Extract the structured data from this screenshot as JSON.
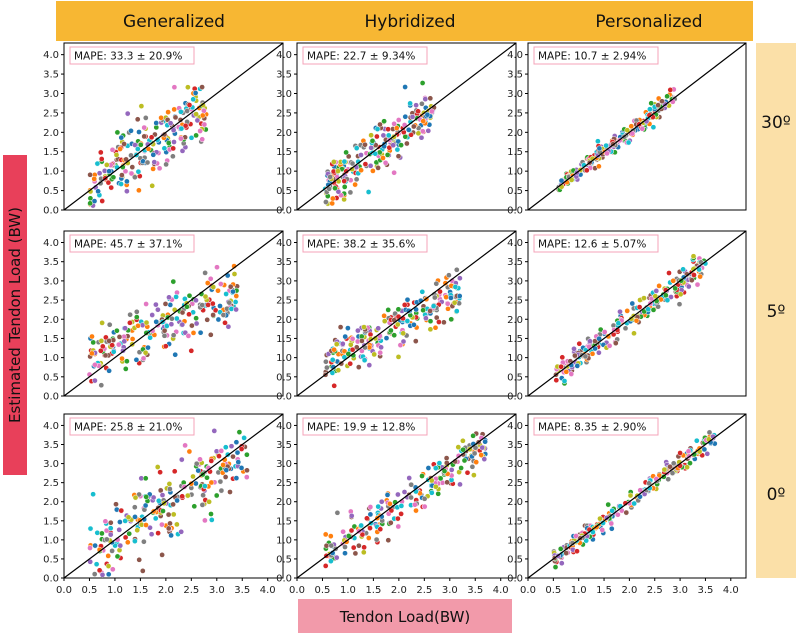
{
  "chart_data": {
    "type": "scatter",
    "columns": [
      "Generalized",
      "Hybridized",
      "Personalized"
    ],
    "rows": [
      "30º",
      "5º",
      "0º"
    ],
    "xlabel": "Tendon Load(BW)",
    "ylabel": "Estimated Tendon Load (BW)",
    "xlim": [
      0.0,
      4.3
    ],
    "ylim": [
      0.0,
      4.3
    ],
    "xticks": [
      "0.0",
      "0.5",
      "1.0",
      "1.5",
      "2.0",
      "2.5",
      "3.0",
      "3.5",
      "4.0"
    ],
    "yticks": [
      "0.0",
      "0.5",
      "1.0",
      "1.5",
      "2.0",
      "2.5",
      "3.0",
      "3.5",
      "4.0"
    ],
    "reference_line": "y = x",
    "series_colors": [
      "#1f77b4",
      "#ff7f0e",
      "#2ca02c",
      "#d62728",
      "#9467bd",
      "#8c564b",
      "#e377c2",
      "#7f7f7f",
      "#bcbd22",
      "#17becf"
    ],
    "panels": [
      {
        "row": "30º",
        "column": "Generalized",
        "mape": "MAPE: 33.3 ± 20.9%",
        "x_range": [
          0.5,
          2.8
        ],
        "center_offset": 0.15,
        "spread": 0.45
      },
      {
        "row": "30º",
        "column": "Hybridized",
        "mape": "MAPE: 22.7 ± 9.34%",
        "x_range": [
          0.55,
          2.7
        ],
        "center_offset": 0.05,
        "spread": 0.28
      },
      {
        "row": "30º",
        "column": "Personalized",
        "mape": "MAPE: 10.7 ± 2.94%",
        "x_range": [
          0.6,
          2.9
        ],
        "center_offset": 0.0,
        "spread": 0.12
      },
      {
        "row": "5º",
        "column": "Generalized",
        "mape": "MAPE: 45.7 ± 37.1%",
        "x_range": [
          0.5,
          3.4
        ],
        "center_offset": 0.55,
        "spread": 0.4
      },
      {
        "row": "5º",
        "column": "Hybridized",
        "mape": "MAPE: 38.2 ± 35.6%",
        "x_range": [
          0.55,
          3.2
        ],
        "center_offset": 0.4,
        "spread": 0.3
      },
      {
        "row": "5º",
        "column": "Personalized",
        "mape": "MAPE: 12.6 ± 5.07%",
        "x_range": [
          0.55,
          3.5
        ],
        "center_offset": 0.05,
        "spread": 0.18
      },
      {
        "row": "0º",
        "column": "Generalized",
        "mape": "MAPE: 25.8 ± 21.0%",
        "x_range": [
          0.5,
          3.6
        ],
        "center_offset": 0.2,
        "spread": 0.45
      },
      {
        "row": "0º",
        "column": "Hybridized",
        "mape": "MAPE: 19.9 ± 12.8%",
        "x_range": [
          0.55,
          3.7
        ],
        "center_offset": 0.1,
        "spread": 0.25
      },
      {
        "row": "0º",
        "column": "Personalized",
        "mape": "MAPE: 8.35 ± 2.90%",
        "x_range": [
          0.5,
          3.7
        ],
        "center_offset": 0.0,
        "spread": 0.12
      }
    ]
  },
  "colors": {
    "column_header_bg": "#f7b733",
    "row_header_bg": "#fbe0a8",
    "ylabel_bg": "#e8405a",
    "xlabel_bg": "#f29aaa",
    "mape_border": "#f4a3b8"
  }
}
